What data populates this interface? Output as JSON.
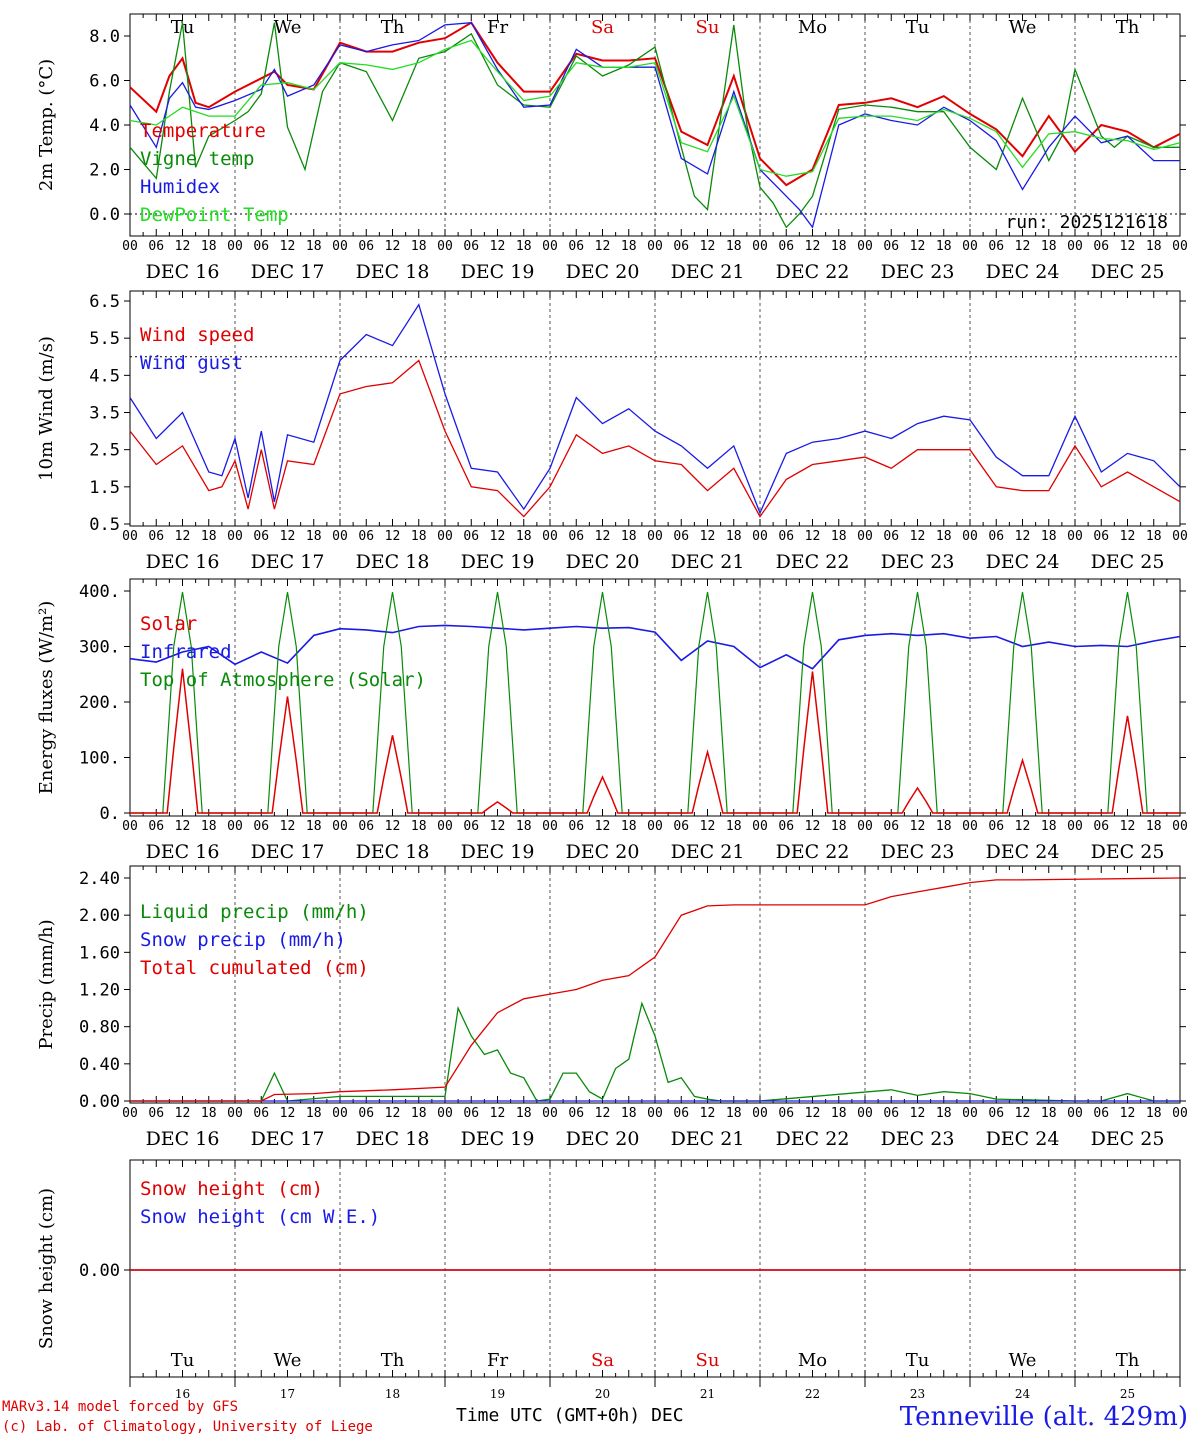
{
  "colors": {
    "red": "#e00000",
    "green": "#0a8a0a",
    "blue": "#1a1ae6",
    "lightgreen": "#22dd22"
  },
  "footer": {
    "credit_line1": "MARv3.14 model forced by GFS",
    "credit_line2": "(c) Lab. of Climatology, University of Liege",
    "xlabel": "Time UTC (GMT+0h) DEC",
    "station": "Tenneville (alt. 429m)"
  },
  "chart_data": [
    {
      "type": "line",
      "title": "2m Temperature",
      "ylabel": "2m Temp. (°C)",
      "ylim": [
        -1.0,
        9.2
      ],
      "yticks": [
        0,
        2,
        4,
        6,
        8
      ],
      "ytick_labels": [
        "0.0",
        "2.0",
        "4.0",
        "6.0",
        "8.0"
      ],
      "ref_line": 0,
      "day_labels": [
        "Tu",
        "We",
        "Th",
        "Fr",
        "Sa",
        "Su",
        "Mo",
        "Tu",
        "We",
        "Th"
      ],
      "weekend_days": [
        "Sa",
        "Su"
      ],
      "hour_labels": [
        "00",
        "06",
        "12",
        "18"
      ],
      "date_labels": [
        "DEC 16",
        "DEC 17",
        "DEC 18",
        "DEC 19",
        "DEC 20",
        "DEC 21",
        "DEC 22",
        "DEC 23",
        "DEC 24",
        "DEC 25"
      ],
      "annotation": "run: 2025121618",
      "x_unit": "hours since DEC 16 00 UTC",
      "series": [
        {
          "name": "Temperature",
          "color": "red",
          "x": [
            0,
            6,
            9,
            12,
            15,
            18,
            24,
            30,
            33,
            36,
            42,
            48,
            54,
            60,
            66,
            72,
            78,
            84,
            90,
            96,
            102,
            108,
            114,
            120,
            126,
            132,
            138,
            144,
            150,
            156,
            162,
            168,
            174,
            180,
            186,
            192,
            198,
            204,
            210,
            216,
            222,
            228,
            234,
            240
          ],
          "values": [
            5.7,
            4.6,
            6.2,
            7.0,
            5.0,
            4.8,
            5.5,
            6.1,
            6.4,
            5.8,
            5.6,
            7.7,
            7.3,
            7.3,
            7.7,
            7.9,
            8.6,
            6.8,
            5.5,
            5.5,
            7.2,
            6.9,
            6.9,
            7.0,
            3.7,
            3.1,
            6.2,
            2.5,
            1.3,
            2.0,
            4.9,
            5.0,
            5.2,
            4.8,
            5.3,
            4.5,
            3.8,
            2.6,
            4.4,
            2.8,
            4.0,
            3.7,
            3.0,
            3.6
          ]
        },
        {
          "name": "Vigne temp",
          "color": "green",
          "x": [
            0,
            6,
            9,
            12,
            15,
            18,
            24,
            27,
            30,
            33,
            36,
            40,
            44,
            48,
            54,
            60,
            66,
            70,
            72,
            78,
            84,
            90,
            96,
            102,
            108,
            114,
            120,
            126,
            129,
            132,
            138,
            141,
            144,
            147,
            150,
            153,
            156,
            162,
            168,
            174,
            180,
            186,
            192,
            198,
            204,
            210,
            213,
            216,
            222,
            225,
            228,
            234,
            240
          ],
          "values": [
            3.0,
            1.6,
            5.5,
            8.6,
            2.1,
            3.5,
            4.2,
            4.6,
            5.4,
            8.6,
            3.9,
            2.0,
            5.5,
            6.8,
            6.4,
            4.2,
            7.0,
            7.2,
            7.3,
            8.1,
            5.8,
            4.9,
            4.8,
            7.1,
            6.2,
            6.7,
            7.5,
            3.0,
            0.8,
            0.2,
            8.5,
            4.0,
            1.2,
            0.5,
            -0.6,
            0.0,
            0.8,
            4.7,
            4.9,
            4.8,
            4.6,
            4.6,
            3.0,
            2.0,
            5.2,
            2.4,
            3.5,
            6.5,
            3.5,
            3.0,
            3.5,
            3.0,
            3.0
          ]
        },
        {
          "name": "Humidex",
          "color": "blue",
          "x": [
            0,
            6,
            9,
            12,
            15,
            18,
            24,
            30,
            33,
            36,
            42,
            48,
            54,
            60,
            66,
            72,
            78,
            84,
            90,
            96,
            102,
            108,
            114,
            120,
            126,
            132,
            138,
            144,
            150,
            153,
            156,
            162,
            168,
            174,
            180,
            186,
            192,
            198,
            204,
            210,
            216,
            222,
            228,
            234,
            240
          ],
          "values": [
            4.9,
            3.0,
            5.2,
            5.9,
            4.8,
            4.7,
            5.1,
            5.6,
            6.5,
            5.3,
            5.8,
            7.6,
            7.3,
            7.6,
            7.8,
            8.5,
            8.6,
            6.5,
            4.8,
            4.9,
            7.4,
            6.6,
            6.6,
            6.6,
            2.5,
            1.8,
            5.5,
            2.0,
            0.8,
            0.2,
            -0.6,
            4.0,
            4.5,
            4.2,
            4.0,
            4.8,
            4.2,
            3.3,
            1.1,
            3.0,
            4.4,
            3.2,
            3.5,
            2.4,
            2.4
          ]
        },
        {
          "name": "DewPoint Temp",
          "color": "lightgreen",
          "x": [
            0,
            6,
            12,
            18,
            24,
            30,
            36,
            42,
            48,
            54,
            60,
            66,
            72,
            78,
            84,
            90,
            96,
            102,
            108,
            114,
            120,
            126,
            132,
            138,
            144,
            150,
            156,
            162,
            168,
            174,
            180,
            186,
            192,
            198,
            204,
            210,
            216,
            222,
            228,
            234,
            240
          ],
          "values": [
            4.2,
            4.0,
            4.8,
            4.4,
            4.4,
            5.8,
            5.9,
            5.6,
            6.8,
            6.7,
            6.5,
            6.8,
            7.4,
            7.8,
            6.4,
            5.1,
            5.3,
            6.8,
            6.6,
            6.6,
            6.8,
            3.2,
            2.8,
            5.3,
            2.0,
            1.7,
            1.9,
            4.3,
            4.4,
            4.4,
            4.2,
            4.7,
            4.3,
            3.7,
            2.1,
            3.6,
            3.7,
            3.4,
            3.3,
            2.9,
            3.2
          ]
        }
      ]
    },
    {
      "type": "line",
      "title": "10m Wind",
      "ylabel": "10m Wind (m/s)",
      "ylim": [
        0.5,
        6.5
      ],
      "yticks": [
        0.5,
        1.5,
        2.5,
        3.5,
        4.5,
        5.5,
        6.5
      ],
      "ytick_labels": [
        "0.5",
        "1.5",
        "2.5",
        "3.5",
        "4.5",
        "5.5",
        "6.5"
      ],
      "ref_line": 5.0,
      "hour_labels": [
        "00",
        "06",
        "12",
        "18"
      ],
      "date_labels": [
        "DEC 16",
        "DEC 17",
        "DEC 18",
        "DEC 19",
        "DEC 20",
        "DEC 21",
        "DEC 22",
        "DEC 23",
        "DEC 24",
        "DEC 25"
      ],
      "series": [
        {
          "name": "Wind speed",
          "color": "red",
          "x": [
            0,
            6,
            12,
            18,
            21,
            24,
            27,
            30,
            33,
            36,
            42,
            48,
            54,
            60,
            66,
            72,
            78,
            84,
            90,
            96,
            102,
            108,
            114,
            120,
            126,
            132,
            138,
            144,
            150,
            156,
            162,
            168,
            174,
            180,
            186,
            192,
            198,
            204,
            210,
            216,
            222,
            228,
            234,
            240
          ],
          "values": [
            3.0,
            2.1,
            2.6,
            1.4,
            1.5,
            2.2,
            0.9,
            2.5,
            0.9,
            2.2,
            2.1,
            4.0,
            4.2,
            4.3,
            4.9,
            3.0,
            1.5,
            1.4,
            0.7,
            1.5,
            2.9,
            2.4,
            2.6,
            2.2,
            2.1,
            1.4,
            2.0,
            0.7,
            1.7,
            2.1,
            2.2,
            2.3,
            2.0,
            2.5,
            2.5,
            2.5,
            1.5,
            1.4,
            1.4,
            2.6,
            1.5,
            1.9,
            1.5,
            1.1
          ]
        },
        {
          "name": "Wind gust",
          "color": "blue",
          "x": [
            0,
            6,
            12,
            18,
            21,
            24,
            27,
            30,
            33,
            36,
            42,
            48,
            54,
            60,
            66,
            72,
            78,
            84,
            90,
            96,
            102,
            108,
            114,
            120,
            126,
            132,
            138,
            144,
            150,
            156,
            162,
            168,
            174,
            180,
            186,
            192,
            198,
            204,
            210,
            216,
            222,
            228,
            234,
            240
          ],
          "values": [
            3.9,
            2.8,
            3.5,
            1.9,
            1.8,
            2.8,
            1.2,
            3.0,
            1.1,
            2.9,
            2.7,
            4.9,
            5.6,
            5.3,
            6.4,
            4.0,
            2.0,
            1.9,
            0.9,
            2.0,
            3.9,
            3.2,
            3.6,
            3.0,
            2.6,
            2.0,
            2.6,
            0.8,
            2.4,
            2.7,
            2.8,
            3.0,
            2.8,
            3.2,
            3.4,
            3.3,
            2.3,
            1.8,
            1.8,
            3.4,
            1.9,
            2.4,
            2.2,
            1.5
          ]
        }
      ]
    },
    {
      "type": "line",
      "title": "Energy fluxes",
      "ylabel": "Energy fluxes (W/m²)",
      "ylim": [
        0,
        400
      ],
      "yticks": [
        0,
        100,
        200,
        300,
        400
      ],
      "ytick_labels": [
        "0.",
        "100.",
        "200.",
        "300.",
        "400."
      ],
      "hour_labels": [
        "00",
        "06",
        "12",
        "18"
      ],
      "date_labels": [
        "DEC 16",
        "DEC 17",
        "DEC 18",
        "DEC 19",
        "DEC 20",
        "DEC 21",
        "DEC 22",
        "DEC 23",
        "DEC 24",
        "DEC 25"
      ],
      "solar_peaks": [
        260,
        210,
        140,
        20,
        65,
        110,
        255,
        45,
        95,
        175
      ],
      "toa_peak": 398,
      "series": [
        {
          "name": "Solar",
          "color": "red",
          "note": "daily bell curve, 08-16 UTC, peaks listed in solar_peaks"
        },
        {
          "name": "Infrared",
          "color": "blue",
          "x": [
            0,
            6,
            12,
            18,
            24,
            30,
            36,
            42,
            48,
            54,
            60,
            66,
            72,
            78,
            84,
            90,
            96,
            102,
            108,
            114,
            120,
            126,
            132,
            138,
            144,
            150,
            156,
            162,
            168,
            174,
            180,
            186,
            192,
            198,
            204,
            210,
            216,
            222,
            228,
            234,
            240
          ],
          "values": [
            278,
            272,
            290,
            300,
            268,
            290,
            270,
            320,
            332,
            330,
            325,
            336,
            338,
            336,
            333,
            330,
            333,
            336,
            333,
            334,
            326,
            275,
            310,
            300,
            262,
            285,
            260,
            312,
            320,
            323,
            320,
            323,
            315,
            318,
            300,
            308,
            300,
            302,
            300,
            310,
            318
          ]
        },
        {
          "name": "Top of Atmosphere (Solar)",
          "color": "green",
          "note": "daily plateau 08-16 UTC reaching toa_peak"
        }
      ]
    },
    {
      "type": "line",
      "title": "Precip",
      "ylabel": "Precip (mm/h)",
      "ylim": [
        0,
        2.44
      ],
      "yticks": [
        0,
        0.4,
        0.8,
        1.2,
        1.6,
        2.0,
        2.4
      ],
      "ytick_labels": [
        "0.00",
        "0.40",
        "0.80",
        "1.20",
        "1.60",
        "2.00",
        "2.40"
      ],
      "hour_labels": [
        "00",
        "06",
        "12",
        "18"
      ],
      "date_labels": [
        "DEC 16",
        "DEC 17",
        "DEC 18",
        "DEC 19",
        "DEC 20",
        "DEC 21",
        "DEC 22",
        "DEC 23",
        "DEC 24",
        "DEC 25"
      ],
      "series": [
        {
          "name": "Liquid precip (mm/h)",
          "color": "green",
          "x": [
            0,
            30,
            33,
            36,
            48,
            72,
            75,
            78,
            81,
            84,
            87,
            90,
            93,
            96,
            99,
            102,
            105,
            108,
            111,
            114,
            117,
            120,
            123,
            126,
            129,
            132,
            135,
            138,
            141,
            144,
            174,
            180,
            186,
            192,
            198,
            216,
            222,
            228,
            234,
            240
          ],
          "values": [
            0,
            0,
            0.3,
            0,
            0.05,
            0.05,
            1.0,
            0.7,
            0.5,
            0.55,
            0.3,
            0.25,
            0.0,
            0.02,
            0.3,
            0.3,
            0.1,
            0.02,
            0.35,
            0.45,
            1.05,
            0.7,
            0.2,
            0.25,
            0.05,
            0.02,
            0,
            0,
            0,
            0,
            0.12,
            0.06,
            0.1,
            0.08,
            0.02,
            0,
            0,
            0.08,
            0,
            0
          ]
        },
        {
          "name": "Snow precip (mm/h)",
          "color": "blue",
          "x": [
            0,
            240
          ],
          "values": [
            0,
            0
          ]
        },
        {
          "name": "Total cumulated (cm)",
          "color": "red",
          "x": [
            0,
            30,
            33,
            42,
            48,
            60,
            72,
            78,
            84,
            90,
            96,
            102,
            108,
            114,
            120,
            126,
            132,
            138,
            144,
            156,
            168,
            174,
            180,
            186,
            192,
            198,
            204,
            240
          ],
          "values": [
            0,
            0,
            0.07,
            0.08,
            0.1,
            0.12,
            0.15,
            0.6,
            0.95,
            1.1,
            1.15,
            1.2,
            1.3,
            1.35,
            1.55,
            2.0,
            2.1,
            2.11,
            2.11,
            2.11,
            2.11,
            2.2,
            2.25,
            2.3,
            2.35,
            2.38,
            2.38,
            2.4
          ]
        }
      ]
    },
    {
      "type": "line",
      "title": "Snow height",
      "ylabel": "Snow height (cm)",
      "yticks": [
        0
      ],
      "ytick_labels": [
        "0.00"
      ],
      "day_labels": [
        "Tu",
        "We",
        "Th",
        "Fr",
        "Sa",
        "Su",
        "Mo",
        "Tu",
        "We",
        "Th"
      ],
      "day_numbers": [
        "16",
        "17",
        "18",
        "19",
        "20",
        "21",
        "22",
        "23",
        "24",
        "25"
      ],
      "series": [
        {
          "name": "Snow height (cm)",
          "color": "red",
          "x": [
            0,
            240
          ],
          "values": [
            0,
            0
          ]
        },
        {
          "name": "Snow height (cm W.E.)",
          "color": "blue",
          "x": [
            0,
            240
          ],
          "values": [
            0,
            0
          ]
        }
      ]
    }
  ]
}
